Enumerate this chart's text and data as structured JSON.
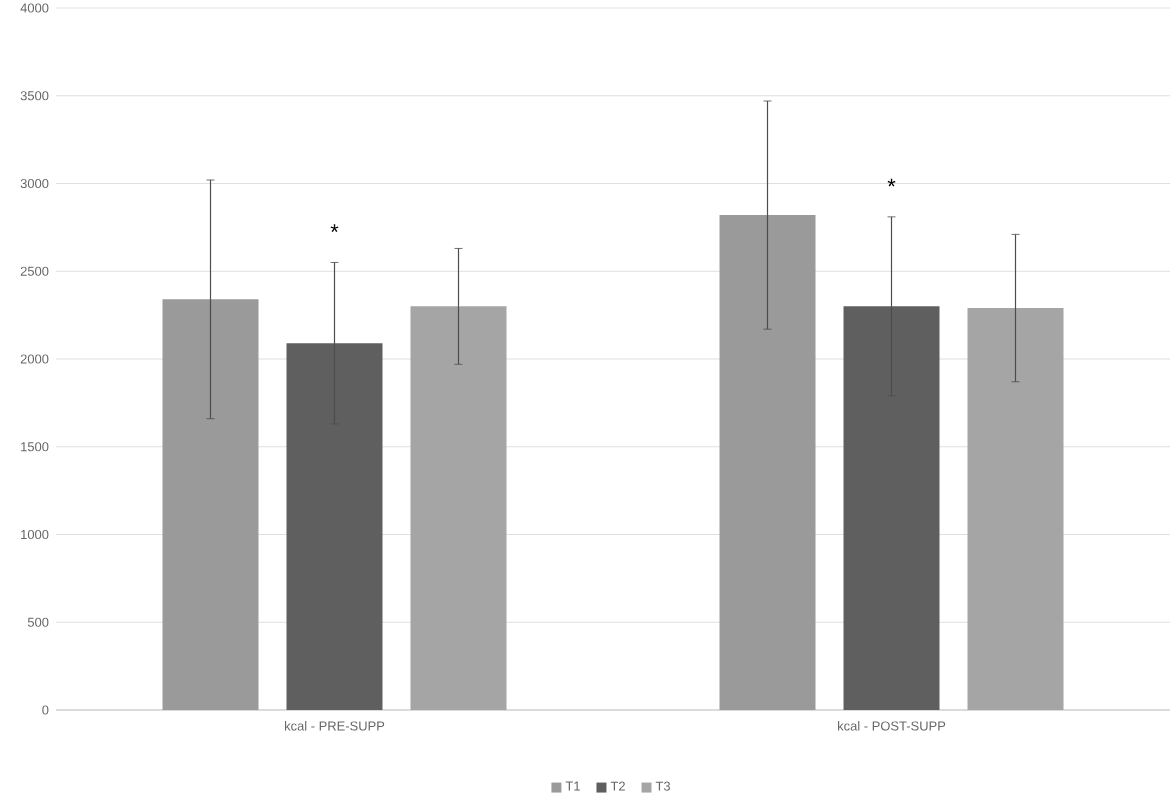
{
  "chart_data": {
    "type": "bar",
    "categories": [
      "kcal - PRE-SUPP",
      "kcal - POST-SUPP"
    ],
    "series": [
      {
        "name": "T1",
        "color": "#9a9a9a",
        "values": [
          2340,
          2820
        ],
        "errors": [
          680,
          650
        ]
      },
      {
        "name": "T2",
        "color": "#5f5f5f",
        "values": [
          2090,
          2300
        ],
        "errors": [
          460,
          510
        ]
      },
      {
        "name": "T3",
        "color": "#a5a5a5",
        "values": [
          2300,
          2290
        ],
        "errors": [
          330,
          420
        ]
      }
    ],
    "ylim": [
      0,
      4000
    ],
    "yticks": [
      0,
      500,
      1000,
      1500,
      2000,
      2500,
      3000,
      3500,
      4000
    ],
    "grid": "y",
    "legend": "bottom",
    "annotations": [
      "*",
      "*"
    ]
  }
}
